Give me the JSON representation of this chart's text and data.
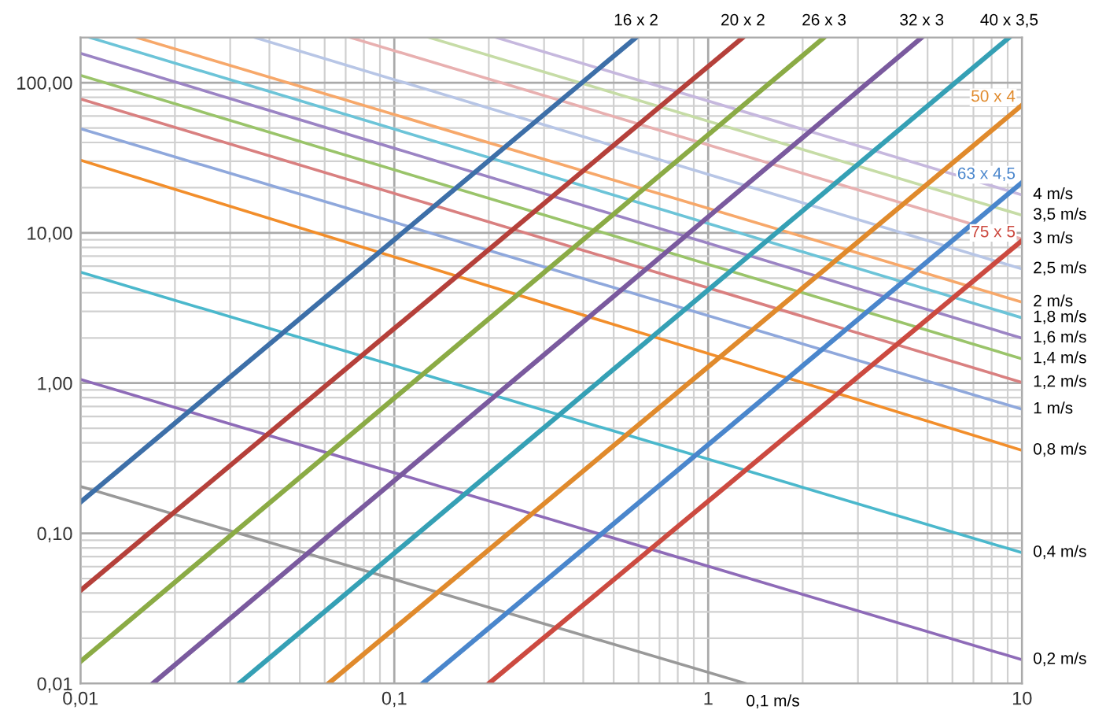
{
  "chart_data": {
    "type": "line",
    "xlim": [
      0.01,
      10
    ],
    "ylim": [
      0.01,
      200
    ],
    "log": "xy",
    "grid": true,
    "marker": "none",
    "line_style": "solid",
    "xticks": [
      {
        "value": 0.01,
        "label": "0,01"
      },
      {
        "value": 0.1,
        "label": "0,1"
      },
      1,
      10
    ],
    "yticks": [
      {
        "value": 0.01,
        "label": "0,01"
      },
      {
        "value": 0.1,
        "label": "0,10"
      },
      {
        "value": 1,
        "label": "1,00"
      },
      {
        "value": 10,
        "label": "10,00"
      },
      {
        "value": 100,
        "label": "100,00"
      }
    ],
    "series": [
      {
        "name": "0,1 m/s",
        "color": "#999999",
        "x": [
          0.01,
          1.32
        ],
        "values": [
          0.205,
          0.01
        ]
      },
      {
        "name": "0,2 m/s",
        "color": "#8e6bb8",
        "x": [
          0.01,
          10
        ],
        "values": [
          1.06,
          0.0144
        ]
      },
      {
        "name": "0,4 m/s",
        "color": "#4bb8cc",
        "x": [
          0.01,
          10
        ],
        "values": [
          5.48,
          0.0743
        ]
      },
      {
        "name": "0,8 m/s",
        "color": "#f28e2b",
        "x": [
          0.01,
          10
        ],
        "values": [
          30.5,
          0.357
        ]
      },
      {
        "name": "1 m/s",
        "color": "#8fa8dc",
        "x": [
          0.01,
          10
        ],
        "values": [
          49.4,
          0.67
        ]
      },
      {
        "name": "1,2 m/s",
        "color": "#d98080",
        "x": [
          0.01,
          10
        ],
        "values": [
          78,
          1.01
        ]
      },
      {
        "name": "1,4 m/s",
        "color": "#9ac46a",
        "x": [
          0.01,
          10
        ],
        "values": [
          112,
          1.45
        ]
      },
      {
        "name": "1,6 m/s",
        "color": "#9b84c4",
        "x": [
          0.01,
          10
        ],
        "values": [
          157,
          1.99
        ]
      },
      {
        "name": "1,8 m/s",
        "color": "#6cc4d8",
        "x": [
          0.0107,
          10
        ],
        "values": [
          200,
          2.72
        ]
      },
      {
        "name": "2 m/s",
        "color": "#f7a86a",
        "x": [
          0.0151,
          10
        ],
        "values": [
          200,
          3.46
        ]
      },
      {
        "name": "2,5 m/s",
        "color": "#b8c6e6",
        "x": [
          0.0359,
          10
        ],
        "values": [
          200,
          5.75
        ]
      },
      {
        "name": "3 m/s",
        "color": "#e8b0b0",
        "x": [
          0.0724,
          10
        ],
        "values": [
          200,
          9.1
        ]
      },
      {
        "name": "3,5 m/s",
        "color": "#c6dca6",
        "x": [
          0.129,
          10
        ],
        "values": [
          200,
          13.1
        ]
      },
      {
        "name": "4 m/s",
        "color": "#c6b8de",
        "x": [
          0.211,
          10
        ],
        "values": [
          200,
          17.9
        ]
      },
      {
        "name": "16 x 2",
        "color": "#3d6fa8",
        "x": [
          0.01,
          0.589
        ],
        "values": [
          0.161,
          200
        ]
      },
      {
        "name": "20 x 2",
        "color": "#b5403a",
        "x": [
          0.01,
          1.29
        ],
        "values": [
          0.0416,
          200
        ]
      },
      {
        "name": "26 x 3",
        "color": "#8bab45",
        "x": [
          0.01,
          2.34
        ],
        "values": [
          0.014,
          200
        ]
      },
      {
        "name": "32 x 3",
        "color": "#7a5a9e",
        "x": [
          0.017,
          4.79
        ],
        "values": [
          0.01,
          200
        ]
      },
      {
        "name": "40 x 3,5",
        "color": "#35a0b5",
        "x": [
          0.032,
          9.1
        ],
        "values": [
          0.01,
          200
        ]
      },
      {
        "name": "50 x 4",
        "color": "#e08a2c",
        "x": [
          0.0617,
          10
        ],
        "values": [
          0.01,
          71
        ]
      },
      {
        "name": "63 x 4,5",
        "color": "#4a86cc",
        "x": [
          0.123,
          10
        ],
        "values": [
          0.01,
          21.7
        ]
      },
      {
        "name": "75 x 5",
        "color": "#cc4a40",
        "x": [
          0.2,
          10
        ],
        "values": [
          0.01,
          8.9
        ]
      }
    ]
  }
}
